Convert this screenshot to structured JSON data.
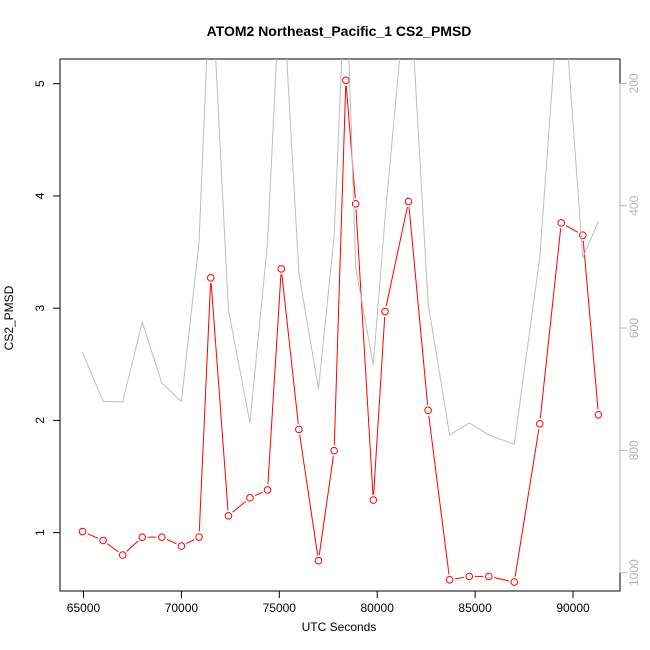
{
  "chart_data": {
    "type": "line",
    "title": "ATOM2 Northeast_Pacific_1 CS2_PMSD",
    "xlabel": "UTC Seconds",
    "ylabel": "CS2_PMSD",
    "xlim": [
      63800,
      92400
    ],
    "ylim": [
      0.48,
      5.22
    ],
    "x_ticks": [
      65000,
      70000,
      75000,
      80000,
      85000,
      90000
    ],
    "y_ticks": [
      1,
      2,
      3,
      4,
      5
    ],
    "y2_ticks": [
      200,
      400,
      600,
      800,
      1000
    ],
    "y2lim": [
      1030,
      160
    ],
    "y2_reversed": true,
    "grid": false,
    "series": [
      {
        "color": "#ff0000",
        "marker": "circle",
        "axis": "left",
        "x": [
          64950,
          66000,
          67000,
          68000,
          69000,
          70000,
          70900,
          71500,
          72400,
          73500,
          74400,
          75100,
          76000,
          77000,
          77800,
          78400,
          78900,
          79800,
          80400,
          81600,
          82600,
          83700,
          84700,
          85700,
          87000,
          88300,
          89400,
          90500,
          91300
        ],
        "y": [
          1.01,
          0.93,
          0.8,
          0.96,
          0.96,
          0.88,
          0.96,
          3.27,
          1.15,
          1.31,
          1.38,
          3.35,
          1.92,
          0.75,
          1.73,
          5.03,
          3.93,
          1.29,
          2.97,
          3.95,
          2.09,
          0.58,
          0.61,
          0.61,
          0.56,
          1.97,
          3.76,
          3.65,
          2.05
        ]
      },
      {
        "color": "#bebebe",
        "marker": "none",
        "axis": "right",
        "x": [
          64950,
          66000,
          67000,
          68000,
          69000,
          70000,
          70900,
          71500,
          72400,
          73500,
          74400,
          75100,
          76000,
          77000,
          77800,
          78400,
          78900,
          79800,
          80400,
          81600,
          82600,
          83700,
          84700,
          85700,
          87000,
          88300,
          89400,
          90500,
          91300
        ],
        "y": [
          640,
          720,
          721,
          590,
          690,
          720,
          460,
          0,
          570,
          755,
          460,
          0,
          510,
          700,
          450,
          0,
          500,
          660,
          420,
          0,
          560,
          775,
          755,
          775,
          790,
          485,
          0,
          485,
          425
        ]
      }
    ]
  }
}
